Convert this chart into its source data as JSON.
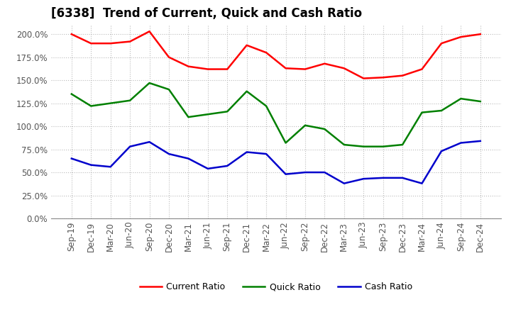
{
  "title": "[6338]  Trend of Current, Quick and Cash Ratio",
  "x_labels": [
    "Sep-19",
    "Dec-19",
    "Mar-20",
    "Jun-20",
    "Sep-20",
    "Dec-20",
    "Mar-21",
    "Jun-21",
    "Sep-21",
    "Dec-21",
    "Mar-22",
    "Jun-22",
    "Sep-22",
    "Dec-22",
    "Mar-23",
    "Jun-23",
    "Sep-23",
    "Dec-23",
    "Mar-24",
    "Jun-24",
    "Sep-24",
    "Dec-24"
  ],
  "current_ratio": [
    200,
    190,
    190,
    192,
    203,
    175,
    165,
    162,
    162,
    188,
    180,
    163,
    162,
    168,
    163,
    152,
    153,
    155,
    162,
    190,
    197,
    200
  ],
  "quick_ratio": [
    135,
    122,
    125,
    128,
    147,
    140,
    110,
    113,
    116,
    138,
    122,
    82,
    101,
    97,
    80,
    78,
    78,
    80,
    115,
    117,
    130,
    127
  ],
  "cash_ratio": [
    65,
    58,
    56,
    78,
    83,
    70,
    65,
    54,
    57,
    72,
    70,
    48,
    50,
    50,
    38,
    43,
    44,
    44,
    38,
    73,
    82,
    84
  ],
  "ylim": [
    0,
    210
  ],
  "yticks": [
    0,
    25,
    50,
    75,
    100,
    125,
    150,
    175,
    200
  ],
  "current_color": "#FF0000",
  "quick_color": "#008000",
  "cash_color": "#0000CC",
  "bg_color": "#FFFFFF",
  "grid_color": "#BBBBBB",
  "legend_labels": [
    "Current Ratio",
    "Quick Ratio",
    "Cash Ratio"
  ],
  "line_width": 1.8,
  "tick_label_color": "#555555",
  "title_fontsize": 12,
  "tick_fontsize": 8.5
}
